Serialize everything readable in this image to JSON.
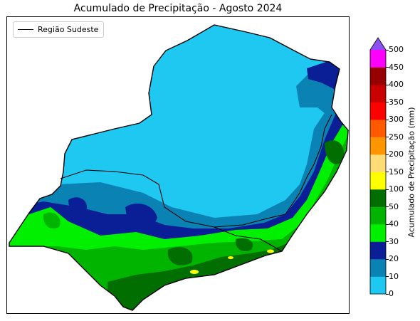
{
  "title": "Acumulado de Precipitação - Agosto 2024",
  "legend": {
    "label": "Região Sudeste",
    "line_color": "#000000"
  },
  "colorbar": {
    "label": "Acumulado de Precipitação (mm)",
    "bins": [
      {
        "from": 0,
        "to": 10,
        "color": "#1ec8f0"
      },
      {
        "from": 10,
        "to": 20,
        "color": "#0a82b4"
      },
      {
        "from": 20,
        "to": 30,
        "color": "#0a1e96"
      },
      {
        "from": 30,
        "to": 40,
        "color": "#00f000"
      },
      {
        "from": 40,
        "to": 50,
        "color": "#00b400"
      },
      {
        "from": 50,
        "to": 100,
        "color": "#006e00"
      },
      {
        "from": 100,
        "to": 150,
        "color": "#ffff00"
      },
      {
        "from": 150,
        "to": 200,
        "color": "#ffdc78"
      },
      {
        "from": 200,
        "to": 250,
        "color": "#ff9600"
      },
      {
        "from": 250,
        "to": 300,
        "color": "#ff5a00"
      },
      {
        "from": 300,
        "to": 350,
        "color": "#ff0000"
      },
      {
        "from": 350,
        "to": 400,
        "color": "#c80000"
      },
      {
        "from": 400,
        "to": 450,
        "color": "#960000"
      },
      {
        "from": 450,
        "to": 500,
        "color": "#ff00ff"
      }
    ],
    "extend_color": "#8c50f0",
    "ticks": [
      "0",
      "10",
      "20",
      "30",
      "40",
      "50",
      "100",
      "150",
      "200",
      "250",
      "300",
      "350",
      "400",
      "450",
      "500"
    ]
  }
}
